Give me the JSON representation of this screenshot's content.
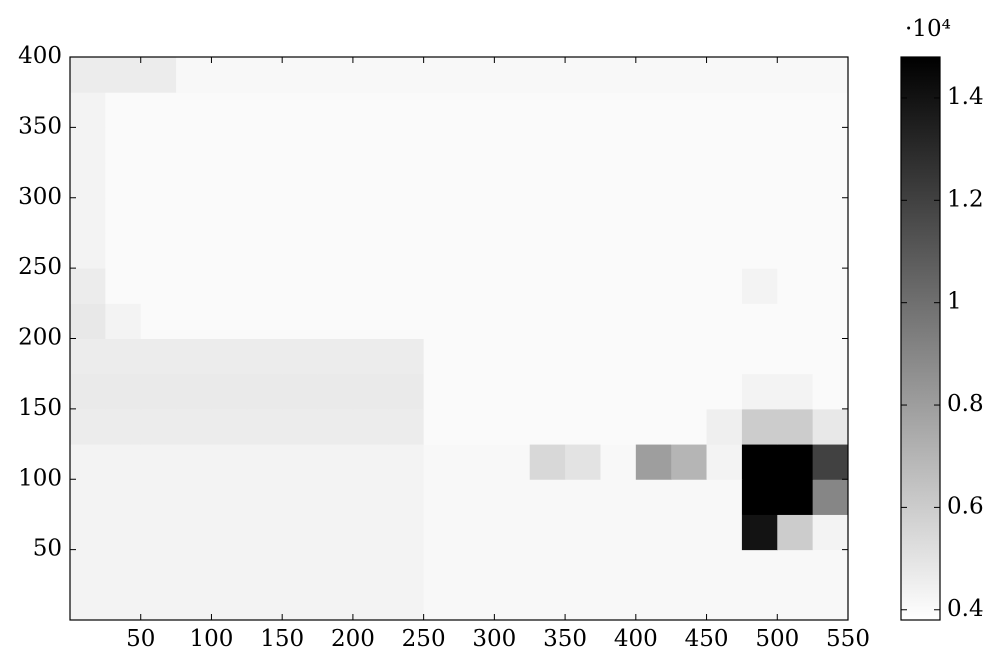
{
  "chart_data": {
    "type": "heatmap",
    "xbins": [
      0,
      25,
      50,
      75,
      100,
      125,
      150,
      175,
      200,
      225,
      250,
      275,
      300,
      325,
      350,
      375,
      400,
      425,
      450,
      475,
      500,
      525,
      550
    ],
    "ybins": [
      0,
      25,
      50,
      75,
      100,
      125,
      150,
      175,
      200,
      225,
      250,
      275,
      300,
      325,
      350,
      375,
      400
    ],
    "values": [
      [
        4300,
        4300,
        4300,
        4300,
        4300,
        4300,
        4300,
        4300,
        4300,
        4300,
        4100,
        4100,
        4100,
        4100,
        4100,
        4100,
        4100,
        4100,
        4100,
        4100,
        4100,
        4100
      ],
      [
        4300,
        4300,
        4300,
        4300,
        4300,
        4300,
        4300,
        4300,
        4300,
        4300,
        4100,
        4100,
        4100,
        4100,
        4100,
        4100,
        4100,
        4100,
        4100,
        4100,
        4100,
        4100
      ],
      [
        4300,
        4300,
        4300,
        4300,
        4300,
        4300,
        4300,
        4300,
        4300,
        4300,
        4100,
        4100,
        4100,
        4100,
        4100,
        4100,
        4100,
        4100,
        4100,
        14000,
        6000,
        4300
      ],
      [
        4300,
        4300,
        4300,
        4300,
        4300,
        4300,
        4300,
        4300,
        4300,
        4300,
        4100,
        4100,
        4100,
        4100,
        4100,
        4100,
        4100,
        4100,
        4100,
        15000,
        15000,
        9000
      ],
      [
        4300,
        4300,
        4300,
        4300,
        4300,
        4300,
        4300,
        4300,
        4300,
        4300,
        4100,
        4100,
        4100,
        5500,
        5000,
        4100,
        8000,
        7000,
        4300,
        15000,
        15000,
        12000
      ],
      [
        4600,
        4600,
        4600,
        4600,
        4600,
        4600,
        4600,
        4600,
        4600,
        4600,
        4000,
        4000,
        4000,
        4000,
        4000,
        4000,
        4000,
        4000,
        4500,
        6000,
        6000,
        4800
      ],
      [
        4700,
        4700,
        4700,
        4700,
        4700,
        4700,
        4700,
        4700,
        4700,
        4700,
        4000,
        4000,
        4000,
        4000,
        4000,
        4000,
        4000,
        4000,
        4000,
        4300,
        4300,
        4000
      ],
      [
        4600,
        4600,
        4600,
        4600,
        4600,
        4600,
        4600,
        4600,
        4600,
        4600,
        4000,
        4000,
        4000,
        4000,
        4000,
        4000,
        4000,
        4000,
        4000,
        4000,
        4000,
        4000
      ],
      [
        4800,
        4300,
        4000,
        4000,
        4000,
        4000,
        4000,
        4000,
        4000,
        4000,
        4000,
        4000,
        4000,
        4000,
        4000,
        4000,
        4000,
        4000,
        4000,
        4000,
        4000,
        4000
      ],
      [
        4600,
        4000,
        4000,
        4000,
        4000,
        4000,
        4000,
        4000,
        4000,
        4000,
        4000,
        4000,
        4000,
        4000,
        4000,
        4000,
        4000,
        4000,
        4000,
        4300,
        4000,
        4000
      ],
      [
        4300,
        4000,
        4000,
        4000,
        4000,
        4000,
        4000,
        4000,
        4000,
        4000,
        4000,
        4000,
        4000,
        4000,
        4000,
        4000,
        4000,
        4000,
        4000,
        4000,
        4000,
        4000
      ],
      [
        4300,
        4000,
        4000,
        4000,
        4000,
        4000,
        4000,
        4000,
        4000,
        4000,
        4000,
        4000,
        4000,
        4000,
        4000,
        4000,
        4000,
        4000,
        4000,
        4000,
        4000,
        4000
      ],
      [
        4300,
        4000,
        4000,
        4000,
        4000,
        4000,
        4000,
        4000,
        4000,
        4000,
        4000,
        4000,
        4000,
        4000,
        4000,
        4000,
        4000,
        4000,
        4000,
        4000,
        4000,
        4000
      ],
      [
        4300,
        4000,
        4000,
        4000,
        4000,
        4000,
        4000,
        4000,
        4000,
        4000,
        4000,
        4000,
        4000,
        4000,
        4000,
        4000,
        4000,
        4000,
        4000,
        4000,
        4000,
        4000
      ],
      [
        4300,
        4000,
        4000,
        4000,
        4000,
        4000,
        4000,
        4000,
        4000,
        4000,
        4000,
        4000,
        4000,
        4000,
        4000,
        4000,
        4000,
        4000,
        4000,
        4000,
        4000,
        4000
      ],
      [
        4600,
        4600,
        4600,
        4100,
        4100,
        4100,
        4100,
        4100,
        4100,
        4100,
        4100,
        4100,
        4100,
        4100,
        4100,
        4100,
        4100,
        4100,
        4100,
        4100,
        4100,
        4100
      ]
    ],
    "xlim": [
      0,
      550
    ],
    "ylim": [
      0,
      400
    ],
    "xticks": [
      50,
      100,
      150,
      200,
      250,
      300,
      350,
      400,
      450,
      500,
      550
    ],
    "yticks": [
      50,
      100,
      150,
      200,
      250,
      300,
      350,
      400
    ],
    "colormap": "gray",
    "clim": [
      3800,
      14800
    ],
    "colorbar_ticks": [
      {
        "value": 4000,
        "label": "0.4"
      },
      {
        "value": 6000,
        "label": "0.6"
      },
      {
        "value": 8000,
        "label": "0.8"
      },
      {
        "value": 10000,
        "label": "1"
      },
      {
        "value": 12000,
        "label": "1.2"
      },
      {
        "value": 14000,
        "label": "1.4"
      }
    ],
    "colorbar_label": "·10⁴"
  }
}
